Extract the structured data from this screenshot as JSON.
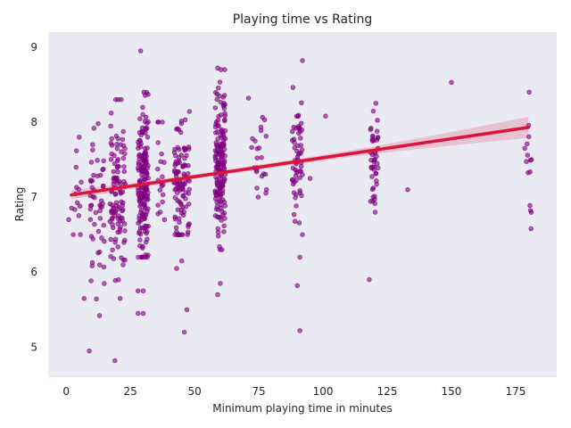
{
  "chart_data": {
    "type": "scatter",
    "title": "Playing time vs Rating",
    "xlabel": "Minimum playing time in minutes",
    "ylabel": "Rating",
    "xlim": [
      -7,
      191
    ],
    "ylim": [
      4.6,
      9.2
    ],
    "xticks": [
      0,
      25,
      50,
      75,
      100,
      125,
      150,
      175
    ],
    "yticks": [
      5,
      6,
      7,
      8,
      9
    ],
    "grid": false,
    "background": "#eaeaf2",
    "point_color": "#800080",
    "fit_line_color": "#dc143c",
    "regression": {
      "x_start": 2,
      "y_start": 7.03,
      "x_end": 180,
      "y_end": 7.93
    },
    "confidence_band": {
      "x": [
        2,
        30,
        60,
        90,
        120,
        150,
        180
      ],
      "half_width": [
        0.06,
        0.035,
        0.03,
        0.035,
        0.05,
        0.09,
        0.14
      ]
    },
    "clusters": [
      {
        "x": 30,
        "x_spread": 2,
        "y_mean": 7.2,
        "y_sd": 0.5,
        "y_range": [
          6.2,
          8.4
        ],
        "count": 180
      },
      {
        "x": 60,
        "x_spread": 2,
        "y_mean": 7.5,
        "y_sd": 0.5,
        "y_range": [
          6.3,
          8.7
        ],
        "count": 170
      },
      {
        "x": 45,
        "x_spread": 3,
        "y_mean": 7.2,
        "y_sd": 0.45,
        "y_range": [
          6.5,
          8.4
        ],
        "count": 110
      },
      {
        "x": 20,
        "x_spread": 3,
        "y_mean": 7.05,
        "y_sd": 0.55,
        "y_range": [
          5.6,
          8.3
        ],
        "count": 110
      },
      {
        "x": 12,
        "x_spread": 3,
        "y_mean": 6.9,
        "y_sd": 0.5,
        "y_range": [
          5.6,
          8.2
        ],
        "count": 50
      },
      {
        "x": 90,
        "x_spread": 2,
        "y_mean": 7.5,
        "y_sd": 0.5,
        "y_range": [
          6.5,
          8.6
        ],
        "count": 60
      },
      {
        "x": 120,
        "x_spread": 1.5,
        "y_mean": 7.55,
        "y_sd": 0.35,
        "y_range": [
          6.8,
          8.3
        ],
        "count": 45
      },
      {
        "x": 37,
        "x_spread": 1.5,
        "y_mean": 7.3,
        "y_sd": 0.4,
        "y_range": [
          6.7,
          8.0
        ],
        "count": 20
      },
      {
        "x": 75,
        "x_spread": 3,
        "y_mean": 7.5,
        "y_sd": 0.4,
        "y_range": [
          7.0,
          8.3
        ],
        "count": 22
      },
      {
        "x": 180,
        "x_spread": 1.5,
        "y_mean": 7.4,
        "y_sd": 0.5,
        "y_range": [
          6.5,
          8.4
        ],
        "count": 14
      },
      {
        "x": 4,
        "x_spread": 2,
        "y_mean": 7.0,
        "y_sd": 0.4,
        "y_range": [
          6.5,
          7.8
        ],
        "count": 14
      }
    ],
    "points": [
      [
        29,
        8.95
      ],
      [
        30,
        5.45
      ],
      [
        28,
        5.75
      ],
      [
        30,
        5.75
      ],
      [
        28,
        5.45
      ],
      [
        9,
        4.95
      ],
      [
        19,
        4.82
      ],
      [
        46,
        5.2
      ],
      [
        47,
        5.5
      ],
      [
        59,
        5.7
      ],
      [
        60,
        5.85
      ],
      [
        91,
        5.22
      ],
      [
        90,
        5.82
      ],
      [
        91,
        6.2
      ],
      [
        118,
        5.9
      ],
      [
        13,
        5.42
      ],
      [
        21,
        5.65
      ],
      [
        7,
        5.65
      ],
      [
        43,
        6.05
      ],
      [
        45,
        6.15
      ],
      [
        150,
        8.53
      ],
      [
        133,
        7.1
      ],
      [
        101,
        8.08
      ],
      [
        95,
        7.25
      ],
      [
        71,
        8.32
      ],
      [
        78,
        7.1
      ],
      [
        1,
        6.7
      ],
      [
        92,
        8.82
      ],
      [
        59,
        8.72
      ],
      [
        181,
        6.58
      ]
    ]
  }
}
